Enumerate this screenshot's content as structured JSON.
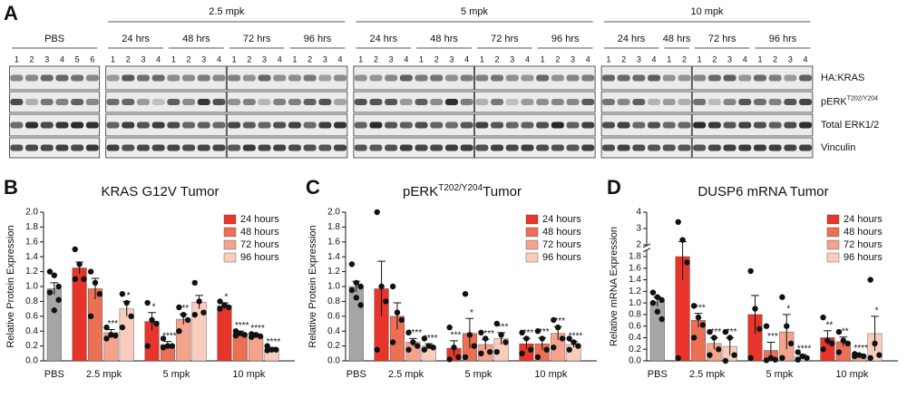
{
  "blot": {
    "panel": "A",
    "groups": [
      {
        "label": "PBS",
        "lanes": [
          1,
          2,
          3,
          4,
          5,
          6
        ]
      },
      {
        "label": "2.5 mpk",
        "subgroups": [
          {
            "label": "24 hrs",
            "lanes": [
              1,
              2,
              3,
              4
            ]
          },
          {
            "label": "48 hrs",
            "lanes": [
              1,
              2,
              3,
              4
            ]
          },
          {
            "label": "72 hrs",
            "lanes": [
              1,
              2,
              3,
              4
            ]
          },
          {
            "label": "96 hrs",
            "lanes": [
              1,
              2,
              3,
              4
            ]
          }
        ]
      },
      {
        "label": "5 mpk",
        "subgroups": [
          {
            "label": "24 hrs",
            "lanes": [
              1,
              2,
              3,
              4
            ]
          },
          {
            "label": "48 hrs",
            "lanes": [
              1,
              2,
              3,
              4
            ]
          },
          {
            "label": "72 hrs",
            "lanes": [
              1,
              2,
              3,
              4
            ]
          },
          {
            "label": "96 hrs",
            "lanes": [
              1,
              2,
              3,
              4
            ]
          }
        ]
      },
      {
        "label": "10 mpk",
        "subgroups": [
          {
            "label": "24 hrs",
            "lanes": [
              1,
              2,
              3,
              4
            ]
          },
          {
            "label": "48 hrs",
            "lanes": [
              1,
              2
            ]
          },
          {
            "label": "72 hrs",
            "lanes": [
              1,
              2,
              3,
              4
            ]
          },
          {
            "label": "96 hrs",
            "lanes": [
              1,
              2,
              3,
              4
            ]
          }
        ]
      }
    ],
    "rows": [
      {
        "label": "HA:KRAS"
      },
      {
        "label": "pERK",
        "sup": "T202/Y204"
      },
      {
        "label": "Total ERK1/2"
      },
      {
        "label": "Vinculin"
      }
    ]
  },
  "chart_data": [
    {
      "panel": "B",
      "type": "bar",
      "title": "KRAS G12V Tumor",
      "ylabel": "Relative Protein Expression",
      "categories": [
        "PBS",
        "2.5 mpk",
        "5 mpk",
        "10 mpk"
      ],
      "legend": "upper right",
      "ylim": [
        0,
        2
      ],
      "yticks": [
        {
          "value": 0,
          "label": "0.0"
        },
        0.2,
        0.4,
        0.6,
        0.8,
        {
          "value": 1,
          "label": "1.0"
        },
        1.2,
        1.4,
        1.6,
        1.8,
        {
          "value": 2,
          "label": "2.0"
        }
      ],
      "control": {
        "color": "#a6a6a6",
        "value": 0.97,
        "error": 0.08,
        "points": [
          1.2,
          1.15,
          1.0,
          0.92,
          0.68,
          0.82
        ]
      },
      "series": [
        {
          "name": "24 hours",
          "color": "#e8352b",
          "values": [
            null,
            1.25,
            0.53,
            0.74
          ],
          "errors": [
            null,
            0.08,
            0.12,
            0.04
          ],
          "points": [
            null,
            [
              1.5,
              1.3,
              1.1,
              1.1
            ],
            [
              0.78,
              0.55,
              0.5,
              0.2
            ],
            [
              0.8,
              0.75,
              0.72,
              0.7
            ]
          ],
          "annotations": [
            null,
            null,
            "*",
            "*"
          ]
        },
        {
          "name": "48 hours",
          "color": "#ec7055",
          "values": [
            null,
            0.97,
            0.22,
            0.37
          ],
          "errors": [
            null,
            0.14,
            0.04,
            0.03
          ],
          "points": [
            null,
            [
              1.2,
              1.05,
              0.9,
              0.6
            ],
            [
              0.3,
              0.2,
              0.2,
              0.18
            ],
            [
              0.4,
              0.37,
              0.35,
              0.34
            ]
          ],
          "annotations": [
            null,
            null,
            "****",
            "****"
          ]
        },
        {
          "name": "72 hours",
          "color": "#f4a38c",
          "values": [
            null,
            0.38,
            0.56,
            0.34
          ],
          "errors": [
            null,
            0.04,
            0.07,
            0.02
          ],
          "points": [
            null,
            [
              0.45,
              0.35,
              0.34,
              0.3
            ],
            [
              0.72,
              0.62,
              0.55,
              0.4
            ],
            [
              0.36,
              0.35,
              0.33,
              0.32
            ]
          ],
          "annotations": [
            null,
            "***",
            "**",
            "****"
          ]
        },
        {
          "name": "96 hours",
          "color": "#f9cdbd",
          "values": [
            null,
            0.7,
            0.79,
            0.16
          ],
          "errors": [
            null,
            0.1,
            0.09,
            0.02
          ],
          "points": [
            null,
            [
              0.9,
              0.78,
              0.6,
              0.45
            ],
            [
              1.05,
              0.8,
              0.65,
              0.62
            ],
            [
              0.2,
              0.15,
              0.15,
              0.14
            ]
          ],
          "annotations": [
            null,
            "*",
            null,
            "****"
          ]
        }
      ]
    },
    {
      "panel": "C",
      "type": "bar",
      "title": {
        "text": "pERK",
        "sup": "T202/Y204",
        "after": "Tumor"
      },
      "ylabel": "Relative Protein Expression",
      "categories": [
        "PBS",
        "2.5 mpk",
        "5 mpk",
        "10 mpk"
      ],
      "legend": "upper right",
      "ylim": [
        0,
        2
      ],
      "yticks": [
        {
          "value": 0,
          "label": "0.0"
        },
        0.2,
        0.4,
        0.6,
        0.8,
        {
          "value": 1,
          "label": "1.0"
        },
        1.2,
        1.4,
        1.6,
        1.8,
        {
          "value": 2,
          "label": "2.0"
        }
      ],
      "control": {
        "color": "#a6a6a6",
        "value": 1.0,
        "error": 0.07,
        "points": [
          1.3,
          1.05,
          1.0,
          0.95,
          0.85,
          0.75
        ]
      },
      "series": [
        {
          "name": "24 hours",
          "color": "#e8352b",
          "values": [
            null,
            0.97,
            0.17,
            0.23
          ],
          "errors": [
            null,
            0.37,
            0.1,
            0.07
          ],
          "points": [
            null,
            [
              2.0,
              1.0,
              0.8,
              0.15
            ],
            [
              0.45,
              0.18,
              0.05,
              0.02
            ],
            [
              0.38,
              0.3,
              0.15,
              0.1
            ]
          ],
          "annotations": [
            null,
            null,
            "***",
            "***"
          ]
        },
        {
          "name": "48 hours",
          "color": "#ec7055",
          "values": [
            null,
            0.6,
            0.37,
            0.23
          ],
          "errors": [
            null,
            0.18,
            0.2,
            0.08
          ],
          "points": [
            null,
            [
              1.0,
              0.65,
              0.55,
              0.25
            ],
            [
              0.9,
              0.35,
              0.2,
              0.05
            ],
            [
              0.4,
              0.3,
              0.15,
              0.05
            ]
          ],
          "annotations": [
            null,
            null,
            "*",
            "***"
          ]
        },
        {
          "name": "72 hours",
          "color": "#f4a38c",
          "values": [
            null,
            0.25,
            0.22,
            0.37
          ],
          "errors": [
            null,
            0.05,
            0.07,
            0.09
          ],
          "points": [
            null,
            [
              0.38,
              0.25,
              0.2,
              0.15
            ],
            [
              0.38,
              0.3,
              0.12,
              0.1
            ],
            [
              0.55,
              0.45,
              0.3,
              0.18
            ]
          ],
          "annotations": [
            null,
            "****",
            "****",
            "***"
          ]
        },
        {
          "name": "96 hours",
          "color": "#f9cdbd",
          "values": [
            null,
            0.2,
            0.3,
            0.22
          ],
          "errors": [
            null,
            0.03,
            0.08,
            0.04
          ],
          "points": [
            null,
            [
              0.3,
              0.2,
              0.18,
              0.15
            ],
            [
              0.5,
              0.35,
              0.25,
              0.12
            ],
            [
              0.3,
              0.25,
              0.2,
              0.15
            ]
          ],
          "annotations": [
            null,
            "****",
            "***",
            "****"
          ]
        }
      ]
    },
    {
      "panel": "D",
      "type": "bar",
      "title": "DUSP6 mRNA Tumor",
      "ylabel": "Relative mRNA Expression",
      "categories": [
        "PBS",
        "2.5 mpk",
        "5 mpk",
        "10 mpk"
      ],
      "legend": "upper right",
      "ylim": [
        0,
        4
      ],
      "ybreak": [
        1.9,
        2
      ],
      "yticks": [
        {
          "value": 0,
          "label": "0.0"
        },
        0.2,
        0.4,
        0.6,
        0.8,
        {
          "value": 1,
          "label": "1.0"
        },
        1.2,
        1.4,
        1.6,
        1.8,
        2,
        3,
        4
      ],
      "control": {
        "color": "#a6a6a6",
        "value": 1.02,
        "error": 0.08,
        "points": [
          1.18,
          1.1,
          1.05,
          1.0,
          0.85,
          0.72
        ]
      },
      "series": [
        {
          "name": "24 hours",
          "color": "#e8352b",
          "values": [
            null,
            1.8,
            0.8,
            0.4
          ],
          "errors": [
            null,
            0.4,
            0.33,
            0.12
          ],
          "points": [
            null,
            [
              3.4,
              2.3,
              1.7,
              0.05
            ],
            [
              1.55,
              0.9,
              0.55,
              0.05
            ],
            [
              0.75,
              0.35,
              0.3,
              0.2
            ]
          ],
          "annotations": [
            null,
            null,
            null,
            "**"
          ]
        },
        {
          "name": "48 hours",
          "color": "#ec7055",
          "values": [
            null,
            0.7,
            0.18,
            0.33
          ],
          "errors": [
            null,
            0.12,
            0.14,
            0.08
          ],
          "points": [
            null,
            [
              0.95,
              0.75,
              0.62,
              0.4
            ],
            [
              0.6,
              0.05,
              0.02,
              0.01
            ],
            [
              0.5,
              0.35,
              0.3,
              0.15
            ]
          ],
          "annotations": [
            null,
            "***",
            "***",
            "**"
          ]
        },
        {
          "name": "72 hours",
          "color": "#f4a38c",
          "values": [
            null,
            0.3,
            0.5,
            0.1
          ],
          "errors": [
            null,
            0.1,
            0.3,
            0.02
          ],
          "points": [
            null,
            [
              0.5,
              0.4,
              0.2,
              0.1
            ],
            [
              1.1,
              0.6,
              0.3,
              0.05
            ],
            [
              0.12,
              0.1,
              0.08,
              0.08
            ]
          ],
          "annotations": [
            null,
            "***",
            "*",
            "****"
          ]
        },
        {
          "name": "96 hours",
          "color": "#f9cdbd",
          "values": [
            null,
            0.25,
            0.07,
            0.47
          ],
          "errors": [
            null,
            0.15,
            0.04,
            0.3
          ],
          "points": [
            null,
            [
              0.5,
              0.4,
              0.1,
              0.0
            ],
            [
              0.15,
              0.08,
              0.05,
              0.02
            ],
            [
              1.4,
              0.3,
              0.1,
              0.05
            ]
          ],
          "annotations": [
            null,
            "***",
            "****",
            "*"
          ]
        }
      ]
    }
  ]
}
